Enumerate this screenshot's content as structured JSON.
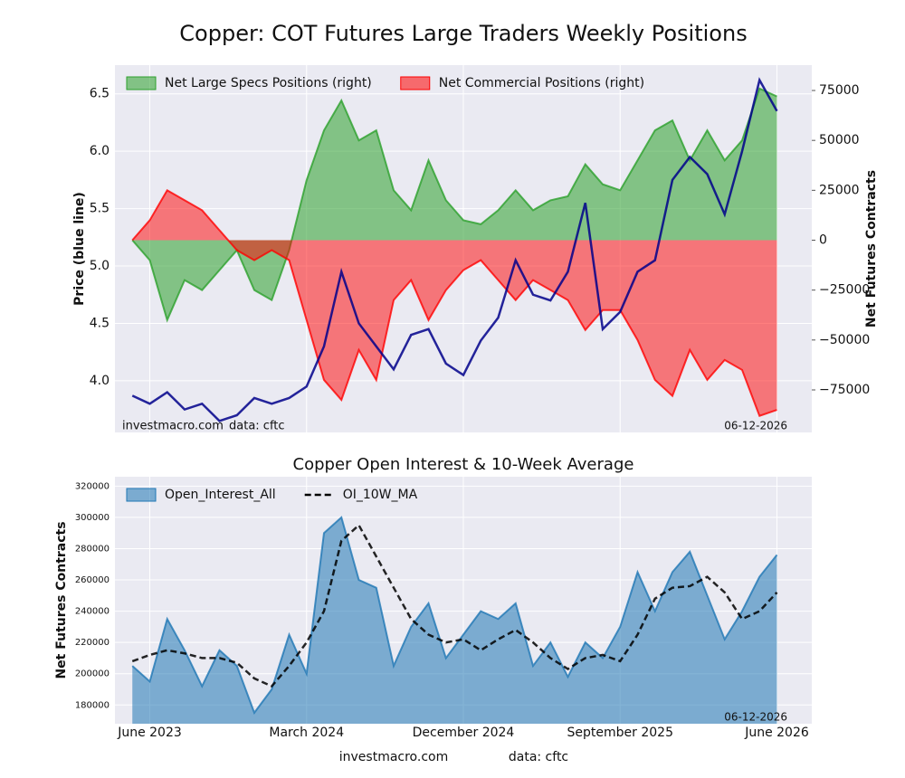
{
  "title": "Copper: COT Futures Large Traders Weekly Positions",
  "watermark": "investmacro.com",
  "source": "data: cftc",
  "date": "06-12-2026",
  "chart_data": [
    {
      "type": "area",
      "ylabel": "Price (blue line)",
      "y2label": "Net Futures Contracts",
      "legend": "upper left",
      "grid": true,
      "x": [
        "2023-05",
        "2023-06",
        "2023-07",
        "2023-08",
        "2023-09",
        "2023-10",
        "2023-11",
        "2023-12",
        "2024-01",
        "2024-02",
        "2024-03",
        "2024-04",
        "2024-05",
        "2024-06",
        "2024-07",
        "2024-08",
        "2024-09",
        "2024-10",
        "2024-11",
        "2024-12",
        "2025-01",
        "2025-02",
        "2025-03",
        "2025-04",
        "2025-05",
        "2025-06",
        "2025-07",
        "2025-08",
        "2025-09",
        "2025-10",
        "2025-11",
        "2025-12",
        "2026-01",
        "2026-02",
        "2026-03",
        "2026-04",
        "2026-05",
        "2026-06"
      ],
      "xlim": [
        "2023-04",
        "2026-08"
      ],
      "ylim": [
        3.55,
        6.75
      ],
      "yticks": [
        {
          "value": 4,
          "label": "4.0"
        },
        4.5,
        {
          "value": 5,
          "label": "5.0"
        },
        5.5,
        {
          "value": 6,
          "label": "6.0"
        },
        6.5
      ],
      "y2lim": [
        -96300,
        87700
      ],
      "y2ticks": [
        {
          "value": -75000,
          "label": "−75000"
        },
        {
          "value": -50000,
          "label": "−50000"
        },
        {
          "value": -25000,
          "label": "−25000"
        },
        0,
        25000,
        50000,
        75000
      ],
      "series": [
        {
          "name": "Net Large Specs Positions (right)",
          "color": "#2ca02c",
          "style": "area",
          "axis": "y2",
          "values": [
            0,
            -10000,
            -40000,
            -20000,
            -25000,
            -15000,
            -5000,
            -25000,
            -30000,
            -5000,
            30000,
            55000,
            70000,
            50000,
            55000,
            25000,
            15000,
            40000,
            20000,
            10000,
            8000,
            15000,
            25000,
            15000,
            20000,
            22000,
            38000,
            28000,
            25000,
            40000,
            55000,
            60000,
            40000,
            55000,
            40000,
            50000,
            76000,
            72000
          ]
        },
        {
          "name": "Net Commercial Positions (right)",
          "color": "#ff0000",
          "style": "area",
          "axis": "y2",
          "values": [
            0,
            10000,
            25000,
            20000,
            15000,
            5000,
            -5000,
            -10000,
            -5000,
            -10000,
            -40000,
            -70000,
            -80000,
            -55000,
            -70000,
            -30000,
            -20000,
            -40000,
            -25000,
            -15000,
            -10000,
            -20000,
            -30000,
            -20000,
            -25000,
            -30000,
            -45000,
            -35000,
            -35000,
            -50000,
            -70000,
            -78000,
            -55000,
            -70000,
            -60000,
            -65000,
            -88000,
            -85000
          ]
        },
        {
          "color": "#00008b",
          "style": "line",
          "values": [
            3.87,
            3.8,
            3.9,
            3.75,
            3.8,
            3.65,
            3.7,
            3.85,
            3.8,
            3.85,
            3.95,
            4.3,
            4.95,
            4.5,
            4.3,
            4.1,
            4.4,
            4.45,
            4.15,
            4.05,
            4.35,
            4.55,
            5.05,
            4.75,
            4.7,
            4.95,
            5.55,
            4.45,
            4.6,
            4.95,
            5.05,
            5.75,
            5.95,
            5.8,
            5.45,
            6.0,
            6.62,
            6.35
          ]
        }
      ]
    },
    {
      "type": "area",
      "subtitle": "Copper Open Interest & 10-Week Average",
      "ylabel": "Net Futures Contracts",
      "legend": "upper left",
      "grid": true,
      "x": [
        "2023-05",
        "2023-06",
        "2023-07",
        "2023-08",
        "2023-09",
        "2023-10",
        "2023-11",
        "2023-12",
        "2024-01",
        "2024-02",
        "2024-03",
        "2024-04",
        "2024-05",
        "2024-06",
        "2024-07",
        "2024-08",
        "2024-09",
        "2024-10",
        "2024-11",
        "2024-12",
        "2025-01",
        "2025-02",
        "2025-03",
        "2025-04",
        "2025-05",
        "2025-06",
        "2025-07",
        "2025-08",
        "2025-09",
        "2025-10",
        "2025-11",
        "2025-12",
        "2026-01",
        "2026-02",
        "2026-03",
        "2026-04",
        "2026-05",
        "2026-06"
      ],
      "xlim": [
        "2023-04",
        "2026-08"
      ],
      "xticks": [
        {
          "value": "2023-06",
          "label": "June 2023"
        },
        {
          "value": "2024-03",
          "label": "March 2024"
        },
        {
          "value": "2024-12",
          "label": "December 2024"
        },
        {
          "value": "2025-09",
          "label": "September 2025"
        },
        {
          "value": "2026-06",
          "label": "June 2026"
        }
      ],
      "ylim": [
        168000,
        326000
      ],
      "yticks": [
        180000,
        200000,
        220000,
        240000,
        260000,
        280000,
        300000,
        320000
      ],
      "series": [
        {
          "name": "Open_Interest_All",
          "color": "#1f77b4",
          "style": "area",
          "values": [
            205000,
            195000,
            235000,
            215000,
            192000,
            215000,
            205000,
            175000,
            190000,
            225000,
            200000,
            290000,
            300000,
            260000,
            255000,
            205000,
            230000,
            245000,
            210000,
            225000,
            240000,
            235000,
            245000,
            205000,
            220000,
            198000,
            220000,
            210000,
            230000,
            265000,
            240000,
            265000,
            278000,
            250000,
            222000,
            240000,
            262000,
            276000
          ]
        },
        {
          "name": "OI_10W_MA",
          "color": "#000000",
          "style": "dashed",
          "values": [
            208000,
            212000,
            215000,
            213000,
            210000,
            210000,
            207000,
            197000,
            192000,
            205000,
            220000,
            240000,
            285000,
            295000,
            275000,
            255000,
            235000,
            225000,
            220000,
            222000,
            215000,
            222000,
            228000,
            220000,
            210000,
            203000,
            210000,
            212000,
            208000,
            225000,
            248000,
            255000,
            256000,
            262000,
            252000,
            235000,
            240000,
            252000
          ]
        }
      ]
    }
  ]
}
